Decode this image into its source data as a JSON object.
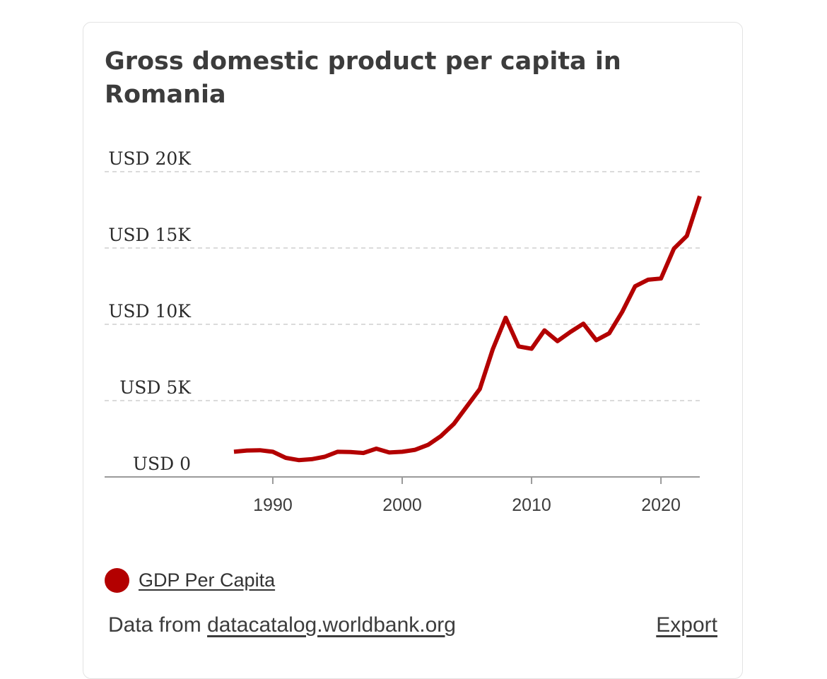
{
  "header": {
    "title": "Gross domestic product per capita in Romania"
  },
  "chart_data": {
    "type": "line",
    "title": "Gross domestic product per capita in Romania",
    "xlabel": "",
    "ylabel": "",
    "xlim": [
      1977,
      2023
    ],
    "ylim": [
      0,
      20000
    ],
    "grid": true,
    "legend_position": "bottom-left",
    "x_ticks": [
      1990,
      2000,
      2010,
      2020
    ],
    "x_tick_labels": [
      "1990",
      "2000",
      "2010",
      "2020"
    ],
    "y_ticks": [
      0,
      5000,
      10000,
      15000,
      20000
    ],
    "y_tick_labels": [
      "USD 0",
      "USD 5K",
      "USD 10K",
      "USD 15K",
      "USD 20K"
    ],
    "series": [
      {
        "name": "GDP Per Capita",
        "color": "#b30000",
        "x": [
          1987,
          1988,
          1989,
          1990,
          1991,
          1992,
          1993,
          1994,
          1995,
          1996,
          1997,
          1998,
          1999,
          2000,
          2001,
          2002,
          2003,
          2004,
          2005,
          2006,
          2007,
          2008,
          2009,
          2010,
          2011,
          2012,
          2013,
          2014,
          2015,
          2016,
          2017,
          2018,
          2019,
          2020,
          2021,
          2022,
          2023
        ],
        "values": [
          1650,
          1730,
          1750,
          1650,
          1250,
          1100,
          1160,
          1320,
          1650,
          1630,
          1570,
          1850,
          1600,
          1650,
          1780,
          2100,
          2680,
          3480,
          4620,
          5760,
          8360,
          10430,
          8550,
          8400,
          9600,
          8900,
          9500,
          10040,
          8960,
          9410,
          10810,
          12490,
          12920,
          13000,
          14960,
          15790,
          18400
        ]
      }
    ]
  },
  "legend": {
    "items": [
      {
        "label": "GDP Per Capita",
        "color": "#b30000"
      }
    ]
  },
  "footer": {
    "source_prefix": "Data from",
    "source_link": "datacatalog.worldbank.org",
    "export_label": "Export"
  }
}
